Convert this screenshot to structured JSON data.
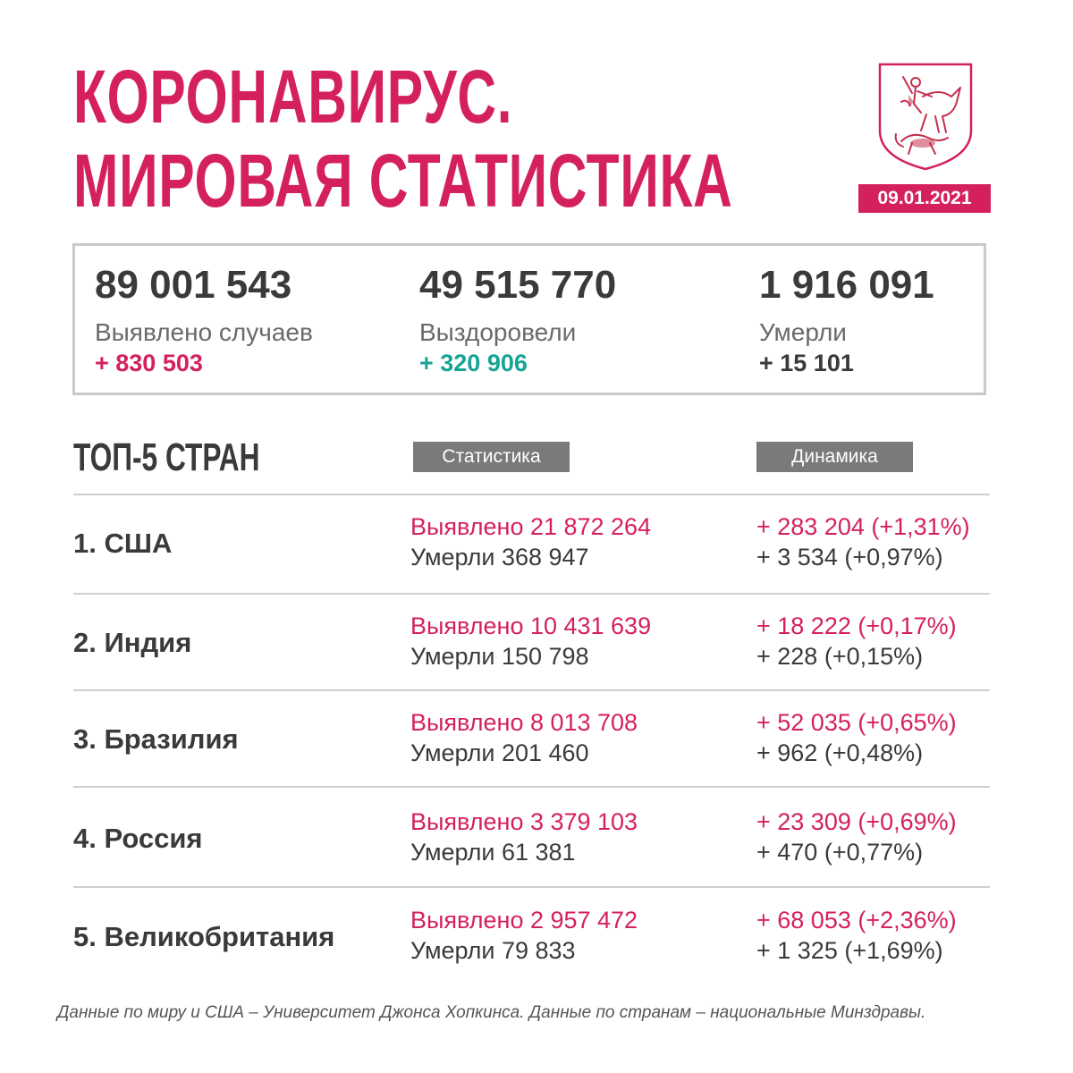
{
  "header": {
    "title_line1": "КОРОНАВИРУС.",
    "title_line2": "МИРОВАЯ СТАТИСТИКА",
    "date": "09.01.2021",
    "emblem_icon": "moscow-coat-of-arms-icon"
  },
  "totals": [
    {
      "value": "89 001 543",
      "label": "Выявлено случаев",
      "delta": "+ 830 503",
      "delta_color": "#d4215c"
    },
    {
      "value": "49 515 770",
      "label": "Выздоровели",
      "delta": "+ 320 906",
      "delta_color": "#17a495"
    },
    {
      "value": "1 916 091",
      "label": "Умерли",
      "delta": "+ 15 101",
      "delta_color": "#3a3a3a"
    }
  ],
  "top5": {
    "heading": "ТОП-5 СТРАН",
    "col_stats": "Статистика",
    "col_dynamics": "Динамика",
    "rows": [
      {
        "country": "1. США",
        "cases": "Выявлено 21 872 264",
        "deaths": "Умерли 368 947",
        "cases_delta": "+ 283 204 (+1,31%)",
        "deaths_delta": "+ 3 534 (+0,97%)"
      },
      {
        "country": "2. Индия",
        "cases": "Выявлено 10 431 639",
        "deaths": "Умерли 150 798",
        "cases_delta": "+ 18 222 (+0,17%)",
        "deaths_delta": "+ 228 (+0,15%)"
      },
      {
        "country": "3. Бразилия",
        "cases": "Выявлено 8 013 708",
        "deaths": "Умерли 201 460",
        "cases_delta": "+ 52 035 (+0,65%)",
        "deaths_delta": "+ 962 (+0,48%)"
      },
      {
        "country": "4. Россия",
        "cases": "Выявлено 3 379 103",
        "deaths": "Умерли 61 381",
        "cases_delta": "+ 23 309 (+0,69%)",
        "deaths_delta": "+ 470 (+0,77%)"
      },
      {
        "country": "5. Великобритания",
        "cases": "Выявлено 2 957 472",
        "deaths": "Умерли 79 833",
        "cases_delta": "+ 68 053 (+2,36%)",
        "deaths_delta": "+ 1 325 (+1,69%)"
      }
    ]
  },
  "footnote": "Данные по миру и США – Университет Джонса Хопкинса. Данные по странам – национальные Минздравы.",
  "colors": {
    "accent": "#d4215c",
    "recovered": "#17a495",
    "text": "#3a3a3a"
  }
}
